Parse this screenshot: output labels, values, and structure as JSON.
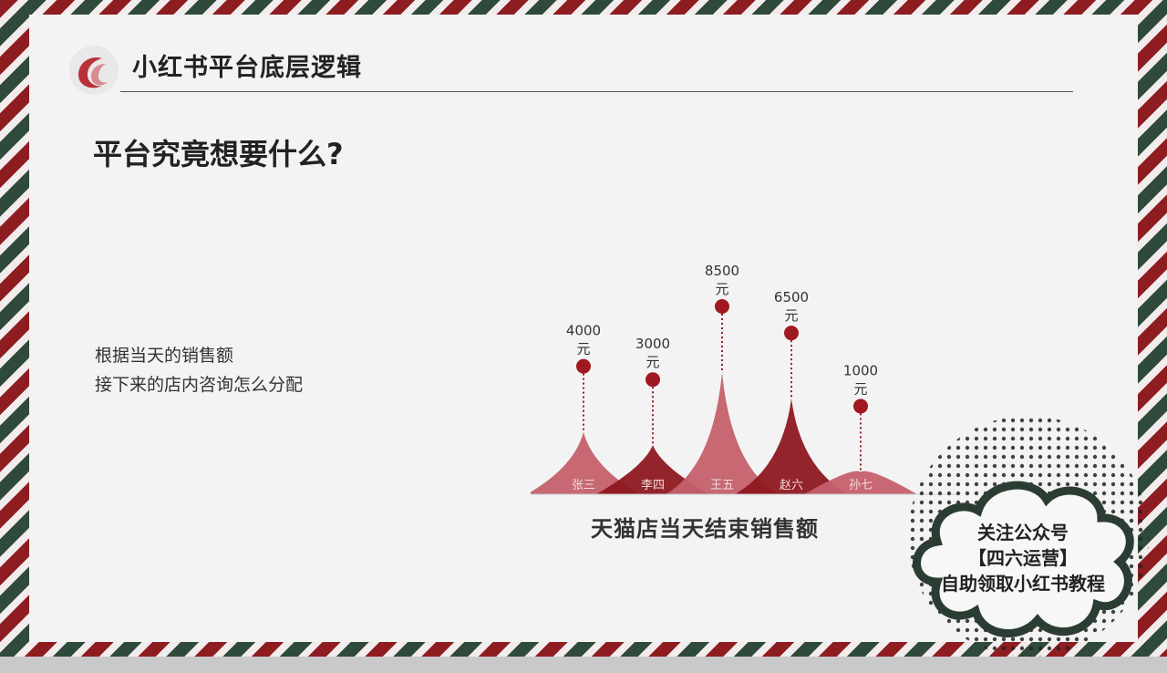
{
  "header": {
    "title": "小红书平台底层逻辑"
  },
  "main": {
    "question": "平台究竟想要什么?",
    "lines": [
      "根据当天的销售额",
      "接下来的店内咨询怎么分配"
    ]
  },
  "chart_data": {
    "type": "area",
    "categories": [
      "张三",
      "李四",
      "王五",
      "赵六",
      "孙七"
    ],
    "values": [
      4000,
      3000,
      8500,
      6500,
      1000
    ],
    "value_labels": [
      {
        "amount": "4000",
        "unit": "元"
      },
      {
        "amount": "3000",
        "unit": "元"
      },
      {
        "amount": "8500",
        "unit": "元"
      },
      {
        "amount": "6500",
        "unit": "元"
      },
      {
        "amount": "1000",
        "unit": "元"
      }
    ],
    "title": "天猫店当天结束销售额",
    "colors": [
      "#c4606c",
      "#8e1820",
      "#c4606c",
      "#8e1820",
      "#c4606c"
    ],
    "marker_color": "#a01820"
  },
  "promo": {
    "lines": [
      "关注公众号",
      "【四六运营】",
      "自助领取小红书教程"
    ]
  },
  "theme": {
    "border_red": "#8e1d22",
    "border_green": "#2f4a3a",
    "background": "#f3f3f3"
  }
}
